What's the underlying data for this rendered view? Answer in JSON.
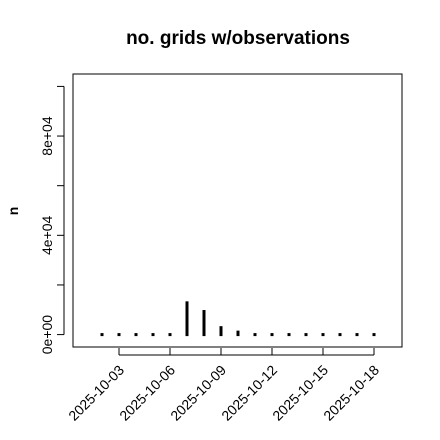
{
  "chart_data": {
    "type": "bar",
    "title": "no. grids w/observations",
    "ylabel": "n",
    "xlabel": "",
    "ylim": [
      -5000,
      105000
    ],
    "y_ticks": [
      0,
      20000,
      40000,
      60000,
      80000,
      100000
    ],
    "y_tick_labels": [
      "0e+00",
      "",
      "4e+04",
      "",
      "8e+04",
      ""
    ],
    "x": [
      "2025-10-02",
      "2025-10-03",
      "2025-10-04",
      "2025-10-05",
      "2025-10-06",
      "2025-10-07",
      "2025-10-08",
      "2025-10-09",
      "2025-10-10",
      "2025-10-11",
      "2025-10-12",
      "2025-10-13",
      "2025-10-14",
      "2025-10-15",
      "2025-10-16",
      "2025-10-17",
      "2025-10-18"
    ],
    "values": [
      200,
      200,
      200,
      200,
      200,
      14000,
      10500,
      4000,
      2200,
      1000,
      400,
      200,
      200,
      200,
      200,
      200,
      200
    ],
    "x_tick_labels": [
      "2025-10-03",
      "2025-10-06",
      "2025-10-09",
      "2025-10-12",
      "2025-10-15",
      "2025-10-18"
    ],
    "x_tick_label_colors": [
      "#000000",
      "#000000",
      "#228B22",
      "#000000",
      "#000000",
      "#000000"
    ],
    "bar_color": "#000000",
    "grid": false
  }
}
